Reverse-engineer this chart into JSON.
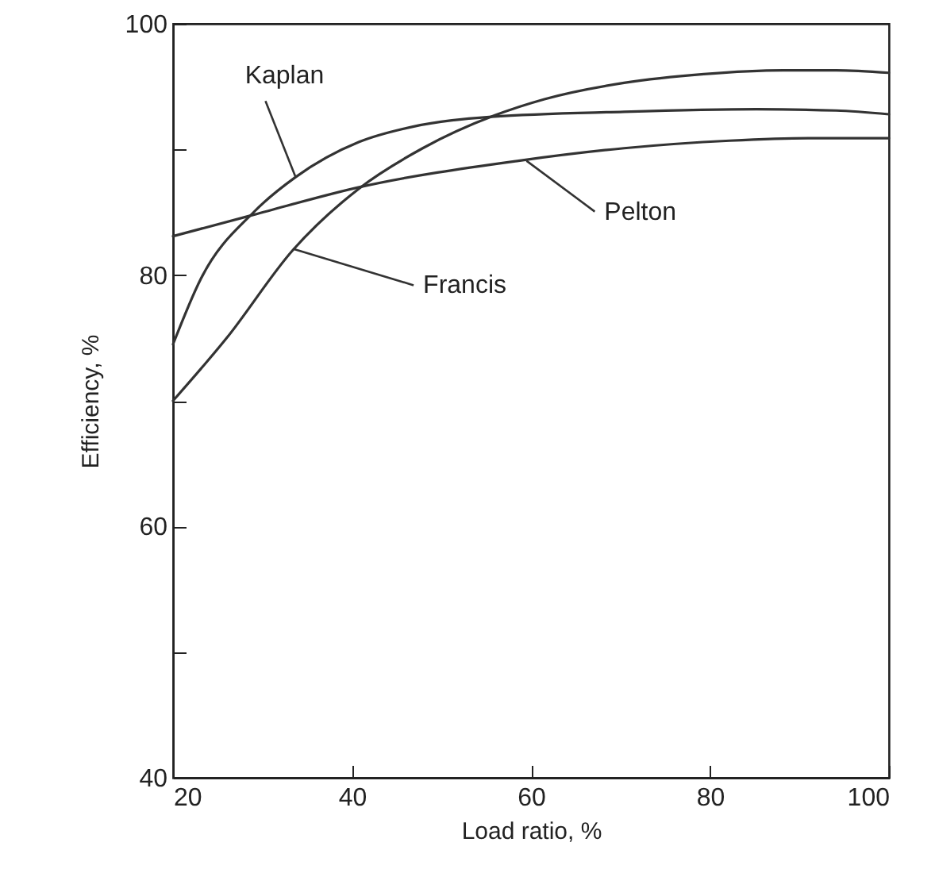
{
  "chart_data": {
    "type": "line",
    "xlabel": "Load ratio, %",
    "ylabel": "Efficiency, %",
    "xlim": [
      20,
      100
    ],
    "xticks": [
      20,
      40,
      60,
      80,
      100
    ],
    "ylim": [
      40,
      100
    ],
    "yticks": [
      40,
      {
        "value": 50,
        "label": null
      },
      60,
      {
        "value": 70,
        "label": null
      },
      80,
      {
        "value": 90,
        "label": null
      },
      100
    ],
    "marker": "none",
    "line_style": "solid",
    "series": [
      {
        "color": "#333333",
        "x": [
          20,
          23.1,
          29,
          33.7,
          40.8,
          46.7,
          55.6,
          70.4,
          85.2,
          94.1,
          100
        ],
        "values": [
          74.5,
          79.7,
          85,
          87.8,
          90.6,
          91.8,
          92.6,
          93,
          93.2,
          93.1,
          92.8
        ]
      },
      {
        "color": "#333333",
        "x": [
          20,
          26,
          33.4,
          40.8,
          47.9,
          55.9,
          61.5,
          70.4,
          79.3,
          88.2,
          94.1,
          100
        ],
        "values": [
          70,
          75,
          82,
          86.9,
          90.1,
          92.7,
          94,
          95.3,
          96,
          96.3,
          96.3,
          96.1
        ]
      },
      {
        "color": "#333333",
        "x": [
          20,
          29,
          40.8,
          58.6,
          70.4,
          82.2,
          91.1,
          100
        ],
        "values": [
          83.1,
          84.8,
          87,
          89.1,
          90.1,
          90.7,
          90.9,
          90.9
        ]
      }
    ],
    "annotations": [
      {
        "text": "Kaplan",
        "x": 33.7,
        "y": 87.8
      },
      {
        "text": "Pelton",
        "x": 59.5,
        "y": 89.1
      },
      {
        "text": "Francis",
        "x": 33.4,
        "y": 82.1
      }
    ]
  }
}
